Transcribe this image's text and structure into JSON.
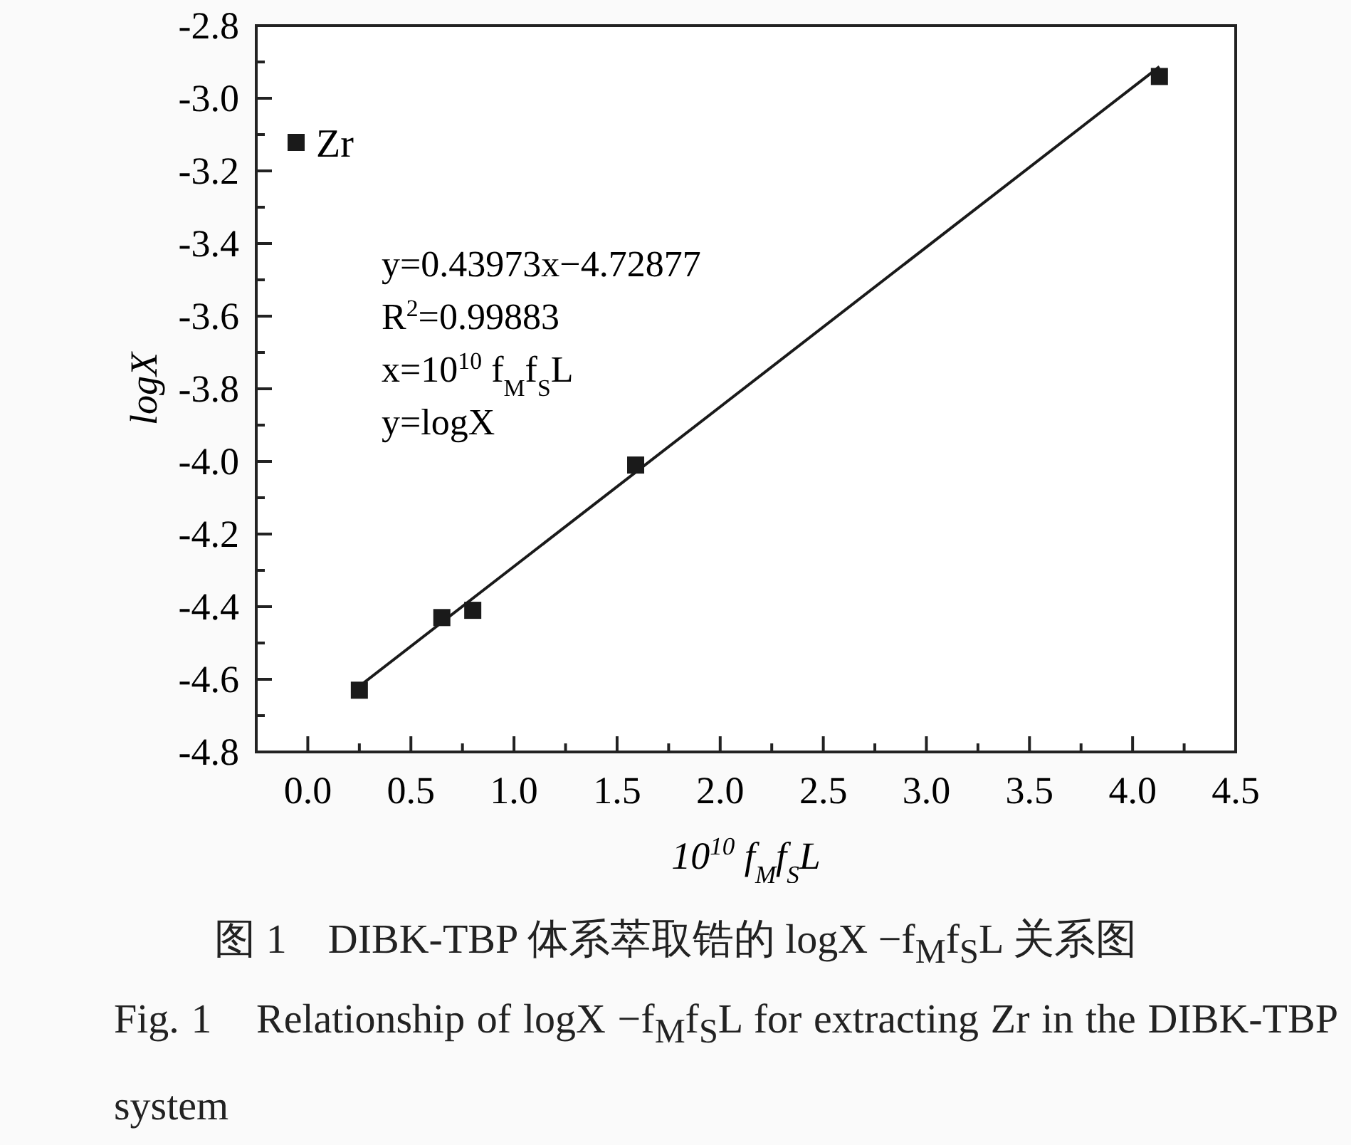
{
  "chart_data": {
    "type": "scatter",
    "title": "图 1　DIBK-TBP 体系萃取锆的 logX −f$_{M}$f$_{S}$L 关系图",
    "subtitle": "Fig. 1　Relationship of logX −f$_{M}$f$_{S}$L for extracting Zr in the DIBK-TBP system",
    "xlabel": "10$^{10}$ f$_{M}$f$_{S}$L",
    "ylabel": "logX",
    "annotations": [
      "y=0.43973x−4.72877",
      "R$^{2}$=0.99883",
      "x=10$^{10}$ f$_{M}$f$_{S}$L",
      "y=logX"
    ],
    "xlim": [
      -0.25,
      4.5
    ],
    "ylim": [
      -4.8,
      -2.8
    ],
    "xticks": [
      {
        "value": 0,
        "label": "0.0"
      },
      {
        "value": 0.25,
        "label": null
      },
      {
        "value": 0.5,
        "label": "0.5"
      },
      {
        "value": 0.75,
        "label": null
      },
      {
        "value": 1,
        "label": "1.0"
      },
      {
        "value": 1.25,
        "label": null
      },
      {
        "value": 1.5,
        "label": "1.5"
      },
      {
        "value": 1.75,
        "label": null
      },
      {
        "value": 2,
        "label": "2.0"
      },
      {
        "value": 2.25,
        "label": null
      },
      {
        "value": 2.5,
        "label": "2.5"
      },
      {
        "value": 2.75,
        "label": null
      },
      {
        "value": 3,
        "label": "3.0"
      },
      {
        "value": 3.25,
        "label": null
      },
      {
        "value": 3.5,
        "label": "3.5"
      },
      {
        "value": 3.75,
        "label": null
      },
      {
        "value": 4,
        "label": "4.0"
      },
      {
        "value": 4.25,
        "label": null
      },
      {
        "value": 4.5,
        "label": "4.5"
      }
    ],
    "yticks": [
      {
        "value": -4.8,
        "label": "-4.8"
      },
      {
        "value": -4.7,
        "label": null
      },
      {
        "value": -4.6,
        "label": "-4.6"
      },
      {
        "value": -4.5,
        "label": null
      },
      {
        "value": -4.4,
        "label": "-4.4"
      },
      {
        "value": -4.3,
        "label": null
      },
      {
        "value": -4.2,
        "label": "-4.2"
      },
      {
        "value": -4.1,
        "label": null
      },
      {
        "value": -4.0,
        "label": "-4.0"
      },
      {
        "value": -3.9,
        "label": null
      },
      {
        "value": -3.8,
        "label": "-3.8"
      },
      {
        "value": -3.7,
        "label": null
      },
      {
        "value": -3.6,
        "label": "-3.6"
      },
      {
        "value": -3.5,
        "label": null
      },
      {
        "value": -3.4,
        "label": "-3.4"
      },
      {
        "value": -3.3,
        "label": null
      },
      {
        "value": -3.2,
        "label": "-3.2"
      },
      {
        "value": -3.1,
        "label": null
      },
      {
        "value": -3.0,
        "label": "-3.0"
      },
      {
        "value": -2.9,
        "label": null
      },
      {
        "value": -2.8,
        "label": "-2.8"
      }
    ],
    "grid": false,
    "legend": "top left",
    "series": [
      {
        "name": "Zr",
        "marker": "square",
        "color": "#1a1a1a",
        "x": [
          0.25,
          0.65,
          0.8,
          1.59,
          4.13
        ],
        "values": [
          -4.63,
          -4.43,
          -4.41,
          -4.01,
          -2.94
        ]
      },
      {
        "type": "line",
        "color": "#1a1a1a",
        "line_style": "solid",
        "x": [
          0.25,
          4.13
        ],
        "values": [
          -4.619,
          -2.913
        ]
      }
    ]
  }
}
